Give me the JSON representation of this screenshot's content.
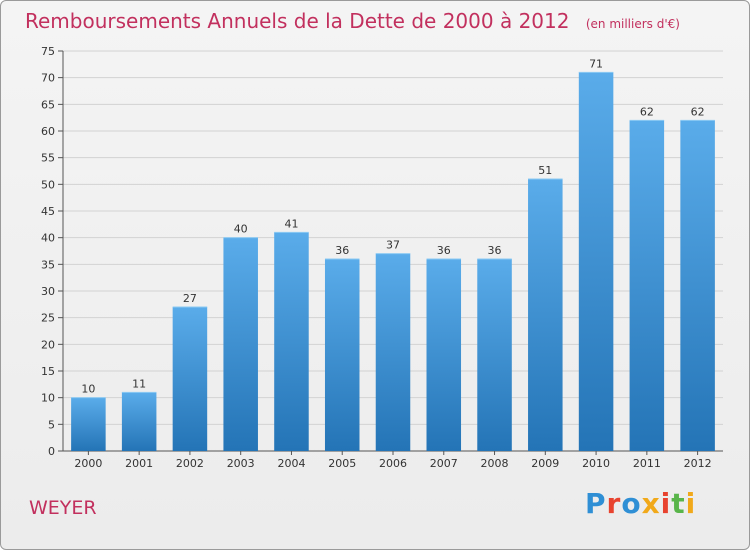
{
  "header": {
    "title": "Remboursements Annuels de la Dette de 2000 à 2012",
    "subtitle": "(en milliers d'€)"
  },
  "footer": {
    "commune": "WEYER",
    "logo_text": "Proxiti"
  },
  "colors": {
    "bar_light": "#5aacea",
    "bar_dark": "#2474b6",
    "title": "#c2305e"
  },
  "chart_data": {
    "type": "bar",
    "title": "Remboursements Annuels de la Dette de 2000 à 2012",
    "subtitle": "(en milliers d'€)",
    "categories": [
      "2000",
      "2001",
      "2002",
      "2003",
      "2004",
      "2005",
      "2006",
      "2007",
      "2008",
      "2009",
      "2010",
      "2011",
      "2012"
    ],
    "values": [
      10,
      11,
      27,
      40,
      41,
      36,
      37,
      36,
      36,
      51,
      71,
      62,
      62
    ],
    "ylim": [
      0,
      75
    ],
    "yticks": [
      0,
      5,
      10,
      15,
      20,
      25,
      30,
      35,
      40,
      45,
      50,
      55,
      60,
      65,
      70,
      75
    ],
    "grid": true,
    "data_labels": true
  }
}
